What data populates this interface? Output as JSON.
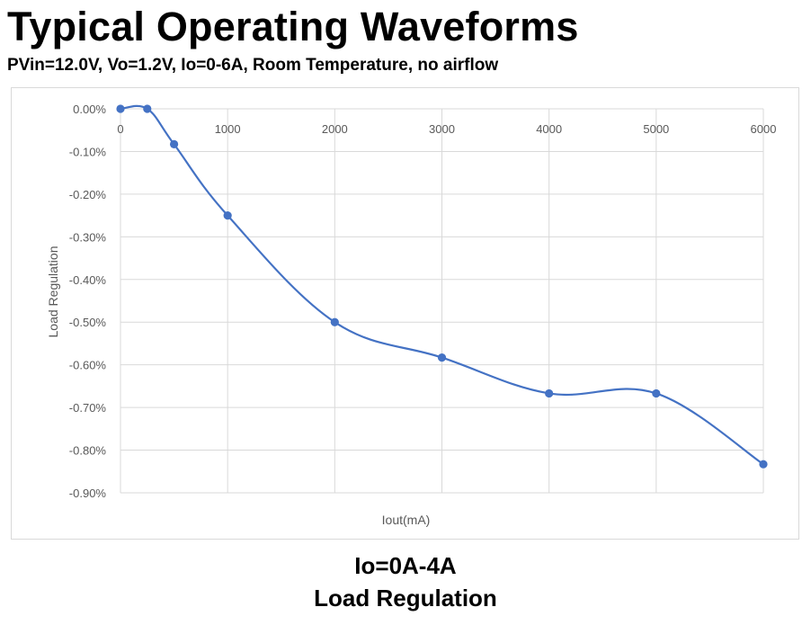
{
  "header": {
    "title": "Typical Operating Waveforms",
    "subtitle": "PVin=12.0V,  Vo=1.2V, Io=0-6A, Room Temperature, no airflow"
  },
  "captions": {
    "line1": "Io=0A-4A",
    "line2": "Load Regulation"
  },
  "chart_data": {
    "type": "line",
    "title": "",
    "xlabel": "Iout(mA)",
    "ylabel": "Load Regulation",
    "xlim": [
      0,
      6000
    ],
    "ylim": [
      -0.9,
      0.0
    ],
    "x_ticks": [
      0,
      1000,
      2000,
      3000,
      4000,
      5000,
      6000
    ],
    "x_tick_labels": [
      "0",
      "1000",
      "2000",
      "3000",
      "4000",
      "5000",
      "6000"
    ],
    "y_ticks": [
      0.0,
      -0.1,
      -0.2,
      -0.3,
      -0.4,
      -0.5,
      -0.6,
      -0.7,
      -0.8,
      -0.9
    ],
    "y_tick_labels": [
      "0.00%",
      "-0.10%",
      "-0.20%",
      "-0.30%",
      "-0.40%",
      "-0.50%",
      "-0.60%",
      "-0.70%",
      "-0.80%",
      "-0.90%"
    ],
    "grid": true,
    "x_axis_position": "top",
    "series": [
      {
        "color": "#4472c4",
        "smooth": true,
        "x": [
          0,
          250,
          500,
          1000,
          2000,
          3000,
          4000,
          5000,
          6000
        ],
        "y": [
          0.0,
          0.0,
          -0.083,
          -0.25,
          -0.5,
          -0.583,
          -0.667,
          -0.667,
          -0.833
        ]
      }
    ]
  }
}
